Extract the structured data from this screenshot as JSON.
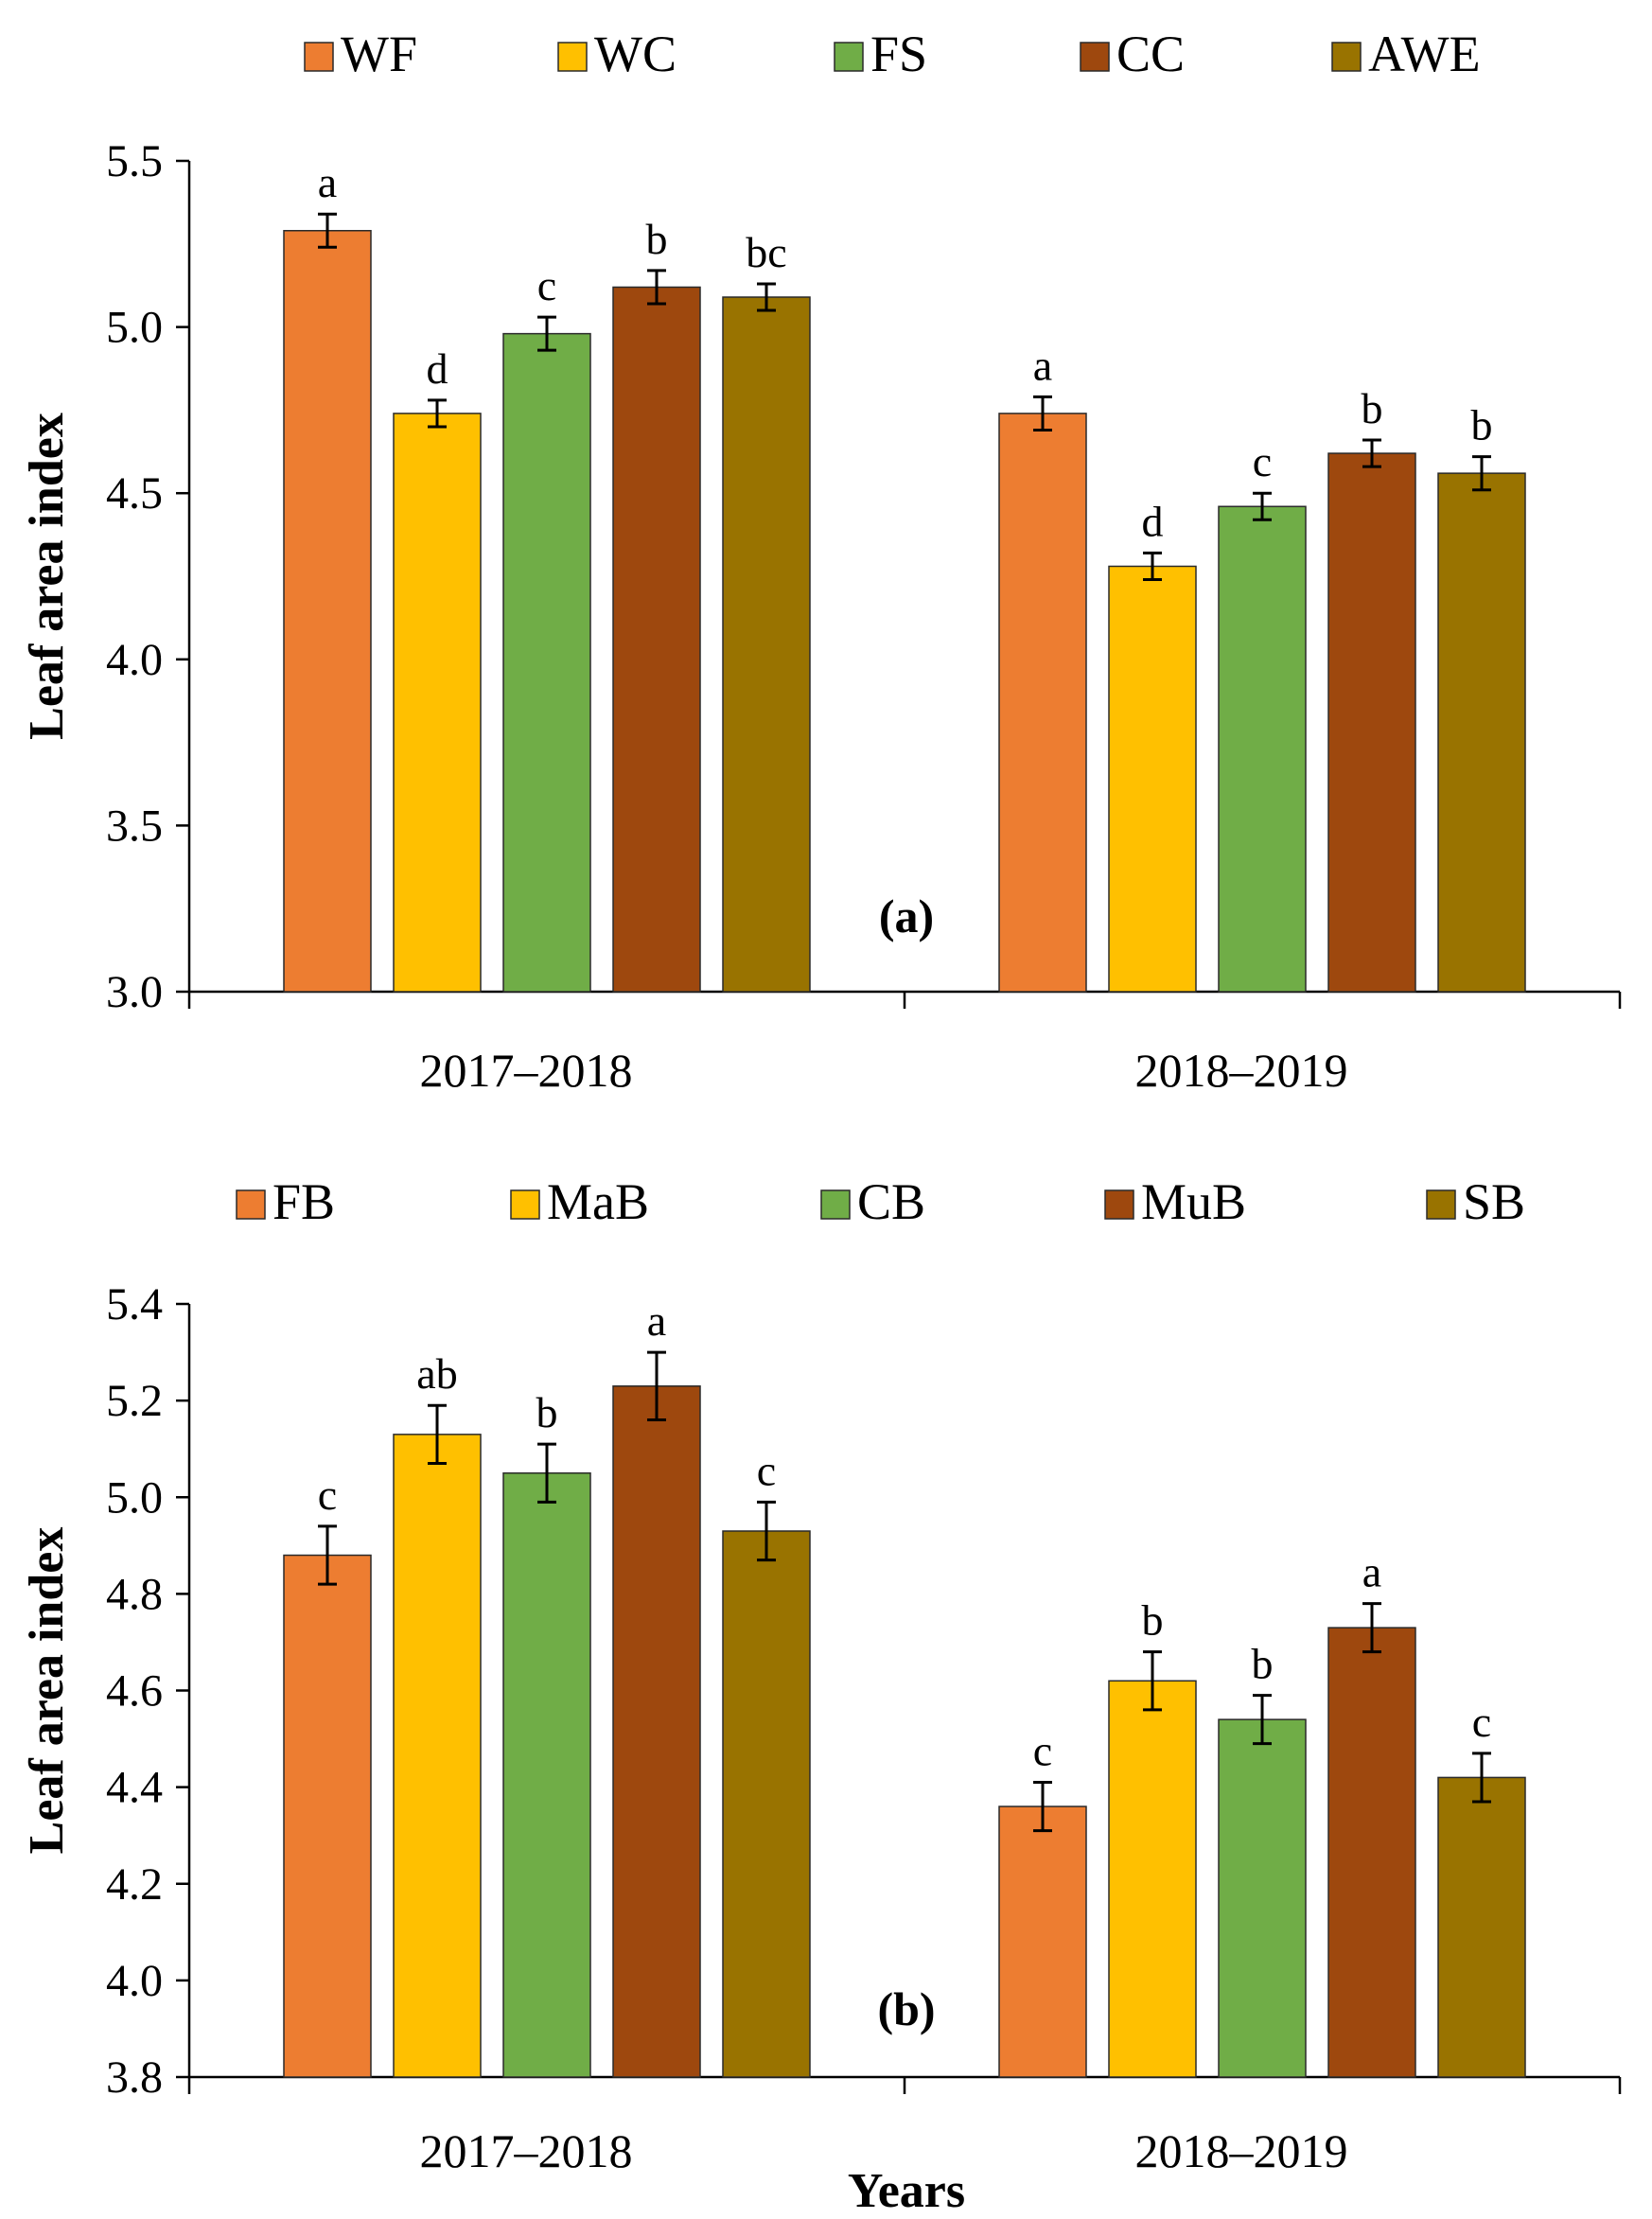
{
  "chart_data": [
    {
      "type": "bar",
      "panel_label": "(a)",
      "title": "",
      "xlabel": "",
      "ylabel": "Leaf area index",
      "ylim": [
        3.0,
        5.5
      ],
      "yticks": [
        "3.0",
        "3.5",
        "4.0",
        "4.5",
        "5.0",
        "5.5"
      ],
      "categories": [
        "2017–2018",
        "2018–2019"
      ],
      "legend_position": "top",
      "series": [
        {
          "name": "WF",
          "color": "#ED7D31",
          "values": [
            5.29,
            4.74
          ],
          "errors": [
            0.05,
            0.05
          ],
          "letters": [
            "a",
            "a"
          ]
        },
        {
          "name": "WC",
          "color": "#FFC000",
          "values": [
            4.74,
            4.28
          ],
          "errors": [
            0.04,
            0.04
          ],
          "letters": [
            "d",
            "d"
          ]
        },
        {
          "name": "FS",
          "color": "#70AD47",
          "values": [
            4.98,
            4.46
          ],
          "errors": [
            0.05,
            0.04
          ],
          "letters": [
            "c",
            "c"
          ]
        },
        {
          "name": "CC",
          "color": "#9E480E",
          "values": [
            5.12,
            4.62
          ],
          "errors": [
            0.05,
            0.04
          ],
          "letters": [
            "b",
            "b"
          ]
        },
        {
          "name": "AWE",
          "color": "#997300",
          "values": [
            5.09,
            4.56
          ],
          "errors": [
            0.04,
            0.05
          ],
          "letters": [
            "bc",
            "b"
          ]
        }
      ]
    },
    {
      "type": "bar",
      "panel_label": "(b)",
      "title": "",
      "xlabel": "Years",
      "ylabel": "Leaf area index",
      "ylim": [
        3.8,
        5.4
      ],
      "yticks": [
        "3.8",
        "4.0",
        "4.2",
        "4.4",
        "4.6",
        "4.8",
        "5.0",
        "5.2",
        "5.4"
      ],
      "categories": [
        "2017–2018",
        "2018–2019"
      ],
      "legend_position": "top",
      "series": [
        {
          "name": "FB",
          "color": "#ED7D31",
          "values": [
            4.88,
            4.36
          ],
          "errors": [
            0.06,
            0.05
          ],
          "letters": [
            "c",
            "c"
          ]
        },
        {
          "name": "MaB",
          "color": "#FFC000",
          "values": [
            5.13,
            4.62
          ],
          "errors": [
            0.06,
            0.06
          ],
          "letters": [
            "ab",
            "b"
          ]
        },
        {
          "name": "CB",
          "color": "#70AD47",
          "values": [
            5.05,
            4.54
          ],
          "errors": [
            0.06,
            0.05
          ],
          "letters": [
            "b",
            "b"
          ]
        },
        {
          "name": "MuB",
          "color": "#9E480E",
          "values": [
            5.23,
            4.73
          ],
          "errors": [
            0.07,
            0.05
          ],
          "letters": [
            "a",
            "a"
          ]
        },
        {
          "name": "SB",
          "color": "#997300",
          "values": [
            4.93,
            4.42
          ],
          "errors": [
            0.06,
            0.05
          ],
          "letters": [
            "c",
            "c"
          ]
        }
      ]
    }
  ]
}
